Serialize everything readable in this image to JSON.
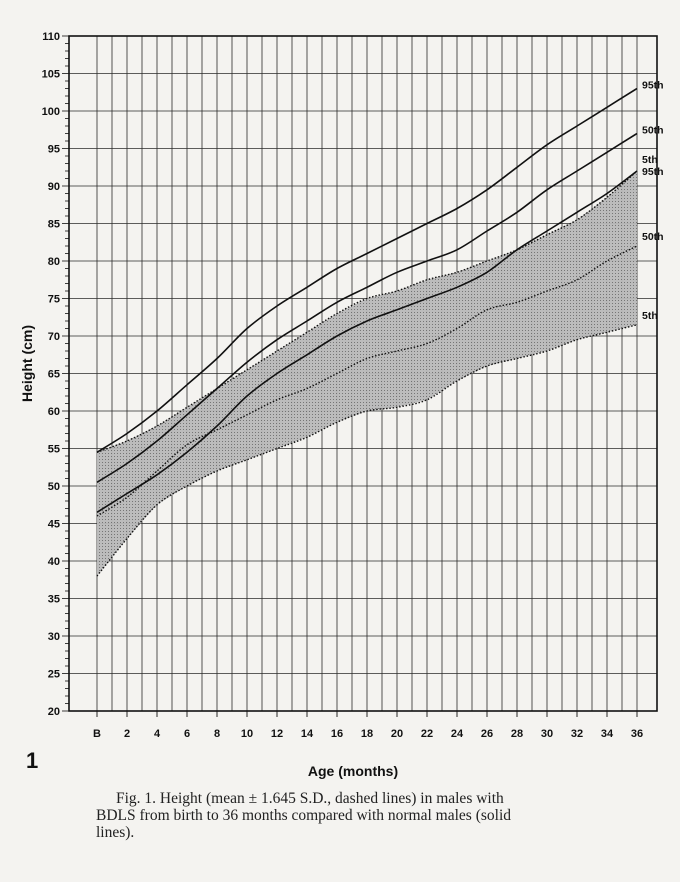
{
  "figure_number": "1",
  "caption_lines": [
    "Fig. 1.   Height (mean ± 1.645 S.D., dashed lines) in males with",
    "BDLS from birth to 36 months compared with normal males (solid",
    "lines)."
  ],
  "chart_data": {
    "type": "line",
    "title": "",
    "xlabel": "Age (months)",
    "ylabel": "Height (cm)",
    "xlim": [
      0,
      36
    ],
    "ylim": [
      20,
      110
    ],
    "grid": true,
    "x_ticks": [
      0,
      2,
      4,
      6,
      8,
      10,
      12,
      14,
      16,
      18,
      20,
      22,
      24,
      26,
      28,
      30,
      32,
      34,
      36
    ],
    "x_tick_labels": [
      "B",
      "2",
      "4",
      "6",
      "8",
      "10",
      "12",
      "14",
      "16",
      "18",
      "20",
      "22",
      "24",
      "26",
      "28",
      "30",
      "32",
      "34",
      "36"
    ],
    "y_ticks": [
      20,
      25,
      30,
      35,
      40,
      45,
      50,
      55,
      60,
      65,
      70,
      75,
      80,
      85,
      90,
      95,
      100,
      105,
      110
    ],
    "y_tick_labels": [
      "20",
      "25",
      "30",
      "35",
      "40",
      "45",
      "50",
      "55",
      "60",
      "65",
      "70",
      "75",
      "80",
      "85",
      "90",
      "95",
      "100",
      "105",
      "110"
    ],
    "shaded_band": {
      "between": [
        "BDLS 95th",
        "BDLS 5th"
      ],
      "color": "#9a9a9a"
    },
    "series": [
      {
        "name": "95th",
        "group": "normal",
        "style": "solid",
        "x": [
          0,
          2,
          4,
          6,
          8,
          10,
          12,
          14,
          16,
          18,
          20,
          22,
          24,
          26,
          28,
          30,
          32,
          34,
          36
        ],
        "y": [
          54.5,
          57,
          60,
          63.5,
          67,
          71,
          74,
          76.5,
          79,
          81,
          83,
          85,
          87,
          89.5,
          92.5,
          95.5,
          98,
          100.5,
          103
        ]
      },
      {
        "name": "50th",
        "group": "normal",
        "style": "solid",
        "x": [
          0,
          2,
          4,
          6,
          8,
          10,
          12,
          14,
          16,
          18,
          20,
          22,
          24,
          26,
          28,
          30,
          32,
          34,
          36
        ],
        "y": [
          50.5,
          53,
          56,
          59.5,
          63,
          66.5,
          69.5,
          72,
          74.5,
          76.5,
          78.5,
          80,
          81.5,
          84,
          86.5,
          89.5,
          92,
          94.5,
          97
        ]
      },
      {
        "name": "5th",
        "group": "normal",
        "style": "solid",
        "x": [
          0,
          2,
          4,
          6,
          8,
          10,
          12,
          14,
          16,
          18,
          20,
          22,
          24,
          26,
          28,
          30,
          32,
          34,
          36
        ],
        "y": [
          46.5,
          49,
          51.5,
          54.5,
          58,
          62,
          65,
          67.5,
          70,
          72,
          73.5,
          75,
          76.5,
          78.5,
          81.5,
          84,
          86.5,
          89,
          92
        ]
      },
      {
        "name": "95th",
        "group": "BDLS",
        "style": "dashed",
        "x": [
          0,
          2,
          4,
          6,
          8,
          10,
          12,
          14,
          16,
          18,
          20,
          22,
          24,
          26,
          28,
          30,
          32,
          34,
          36
        ],
        "y": [
          54.5,
          56,
          58,
          60.5,
          63,
          65.5,
          68,
          70.5,
          73,
          75,
          76,
          77.5,
          78.5,
          80,
          81.5,
          83.5,
          85.5,
          88.5,
          92
        ]
      },
      {
        "name": "50th",
        "group": "BDLS",
        "style": "dashed",
        "x": [
          0,
          2,
          4,
          6,
          8,
          10,
          12,
          14,
          16,
          18,
          20,
          22,
          24,
          26,
          28,
          30,
          32,
          34,
          36
        ],
        "y": [
          46,
          48.5,
          52,
          55.5,
          57.5,
          59.5,
          61.5,
          63,
          65,
          67,
          68,
          69,
          71,
          73.5,
          74.5,
          76,
          77.5,
          80,
          82
        ]
      },
      {
        "name": "5th",
        "group": "BDLS",
        "style": "dashed",
        "x": [
          0,
          2,
          4,
          6,
          8,
          10,
          12,
          14,
          16,
          18,
          20,
          22,
          24,
          26,
          28,
          30,
          32,
          34,
          36
        ],
        "y": [
          38,
          43,
          47.5,
          50,
          52,
          53.5,
          55,
          56.5,
          58.5,
          60,
          60.5,
          61.5,
          64,
          66,
          67,
          68,
          69.5,
          70.5,
          71.5
        ]
      }
    ]
  }
}
